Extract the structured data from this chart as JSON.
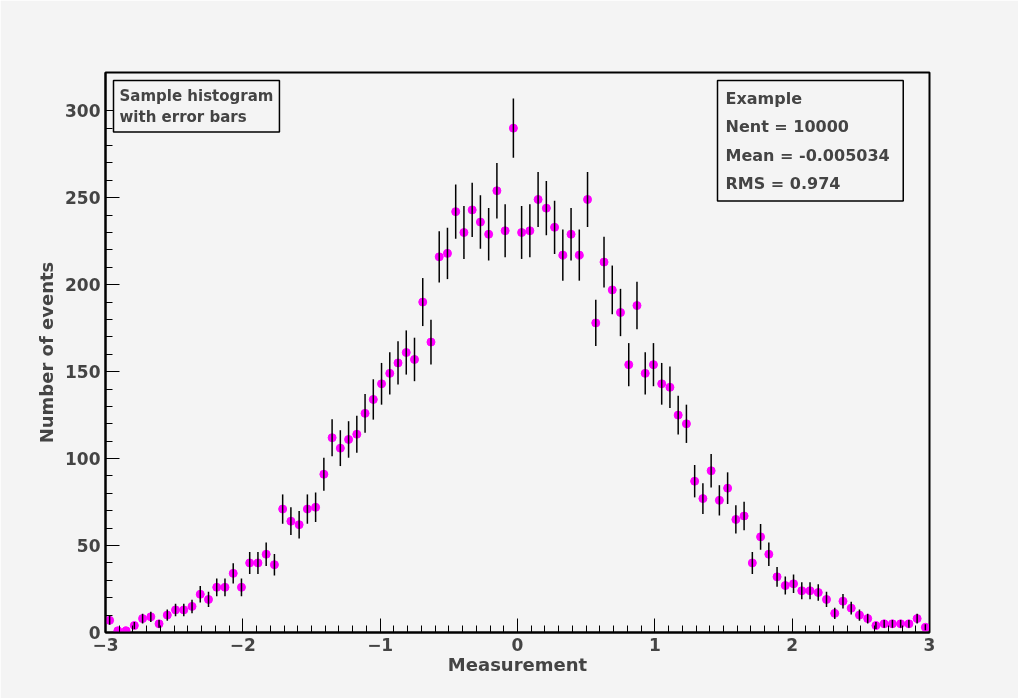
{
  "chart_data": {
    "type": "scatter",
    "title": "Sample histogram\nwith error bars",
    "xlabel": "Measurement",
    "ylabel": "Number of events",
    "annotations": [
      "Example",
      "Nent = 10000",
      "Mean  = -0.005034",
      "RMS   = 0.974"
    ],
    "x": [
      -2.97,
      -2.91,
      -2.85,
      -2.79,
      -2.73,
      -2.67,
      -2.61,
      -2.55,
      -2.49,
      -2.43,
      -2.37,
      -2.31,
      -2.25,
      -2.19,
      -2.13,
      -2.07,
      -2.01,
      -1.95,
      -1.89,
      -1.83,
      -1.77,
      -1.71,
      -1.65,
      -1.59,
      -1.53,
      -1.47,
      -1.41,
      -1.35,
      -1.29,
      -1.23,
      -1.17,
      -1.11,
      -1.05,
      -0.99,
      -0.93,
      -0.87,
      -0.81,
      -0.75,
      -0.69,
      -0.63,
      -0.57,
      -0.51,
      -0.45,
      -0.39,
      -0.33,
      -0.27,
      -0.21,
      -0.15,
      -0.09,
      -0.03,
      0.03,
      0.09,
      0.15,
      0.21,
      0.27,
      0.33,
      0.39,
      0.45,
      0.51,
      0.57,
      0.63,
      0.69,
      0.75,
      0.81,
      0.87,
      0.93,
      0.99,
      1.05,
      1.11,
      1.17,
      1.23,
      1.29,
      1.35,
      1.41,
      1.47,
      1.53,
      1.59,
      1.65,
      1.71,
      1.77,
      1.83,
      1.89,
      1.95,
      2.01,
      2.07,
      2.13,
      2.19,
      2.25,
      2.31,
      2.37,
      2.43,
      2.49,
      2.55,
      2.61,
      2.67,
      2.73,
      2.79,
      2.85,
      2.91,
      2.97
    ],
    "values": [
      7,
      1,
      1,
      4,
      8,
      9,
      5,
      10,
      13,
      13,
      15,
      22,
      19,
      26,
      26,
      34,
      26,
      40,
      40,
      45,
      39,
      71,
      64,
      62,
      71,
      72,
      91,
      112,
      106,
      111,
      114,
      126,
      134,
      143,
      149,
      155,
      161,
      157,
      190,
      167,
      216,
      218,
      242,
      230,
      243,
      236,
      229,
      254,
      231,
      290,
      230,
      231,
      249,
      244,
      233,
      217,
      229,
      217,
      249,
      178,
      213,
      197,
      184,
      154,
      188,
      149,
      154,
      143,
      141,
      125,
      120,
      87,
      77,
      93,
      76,
      83,
      65,
      67,
      40,
      55,
      45,
      32,
      27,
      28,
      24,
      24,
      23,
      19,
      11,
      18,
      14,
      10,
      8,
      4,
      5,
      5,
      5,
      5,
      8,
      3
    ],
    "errors": [
      2.6,
      null,
      null,
      2,
      2.8,
      3,
      2.2,
      3.2,
      3.6,
      3.6,
      3.9,
      4.7,
      4.4,
      5.1,
      5.1,
      5.8,
      5.1,
      6.3,
      6.3,
      6.7,
      6.2,
      8.4,
      8,
      7.9,
      8.4,
      8.5,
      9.5,
      10.6,
      10.3,
      10.5,
      10.7,
      11.2,
      11.6,
      12,
      12.2,
      12.4,
      12.7,
      12.5,
      13.8,
      12.9,
      14.7,
      14.8,
      15.6,
      15.2,
      15.6,
      15.4,
      15.1,
      15.9,
      15.2,
      17,
      15.2,
      15.2,
      15.8,
      15.6,
      15.3,
      14.7,
      15.1,
      14.7,
      15.8,
      13.3,
      14.6,
      14,
      13.6,
      12.4,
      13.7,
      12.2,
      12.4,
      12,
      11.9,
      11.2,
      11,
      9.3,
      8.8,
      9.6,
      8.7,
      9.1,
      8.1,
      8.2,
      6.3,
      7.4,
      6.7,
      5.7,
      5.2,
      5.3,
      4.9,
      4.9,
      4.8,
      4.4,
      3.3,
      4.2,
      3.7,
      3.2,
      2.8,
      2,
      2.2,
      2.2,
      2.2,
      2.2,
      2.8,
      1.7
    ],
    "color": "#ff00ff",
    "marker": "circle",
    "grid": false,
    "xlim": [
      -3,
      3
    ],
    "xticks": [
      -3,
      -2,
      -1,
      0,
      1,
      2,
      3
    ],
    "ylim": [
      0,
      322
    ],
    "yticks": [
      0,
      50,
      100,
      150,
      200,
      250,
      300
    ]
  }
}
